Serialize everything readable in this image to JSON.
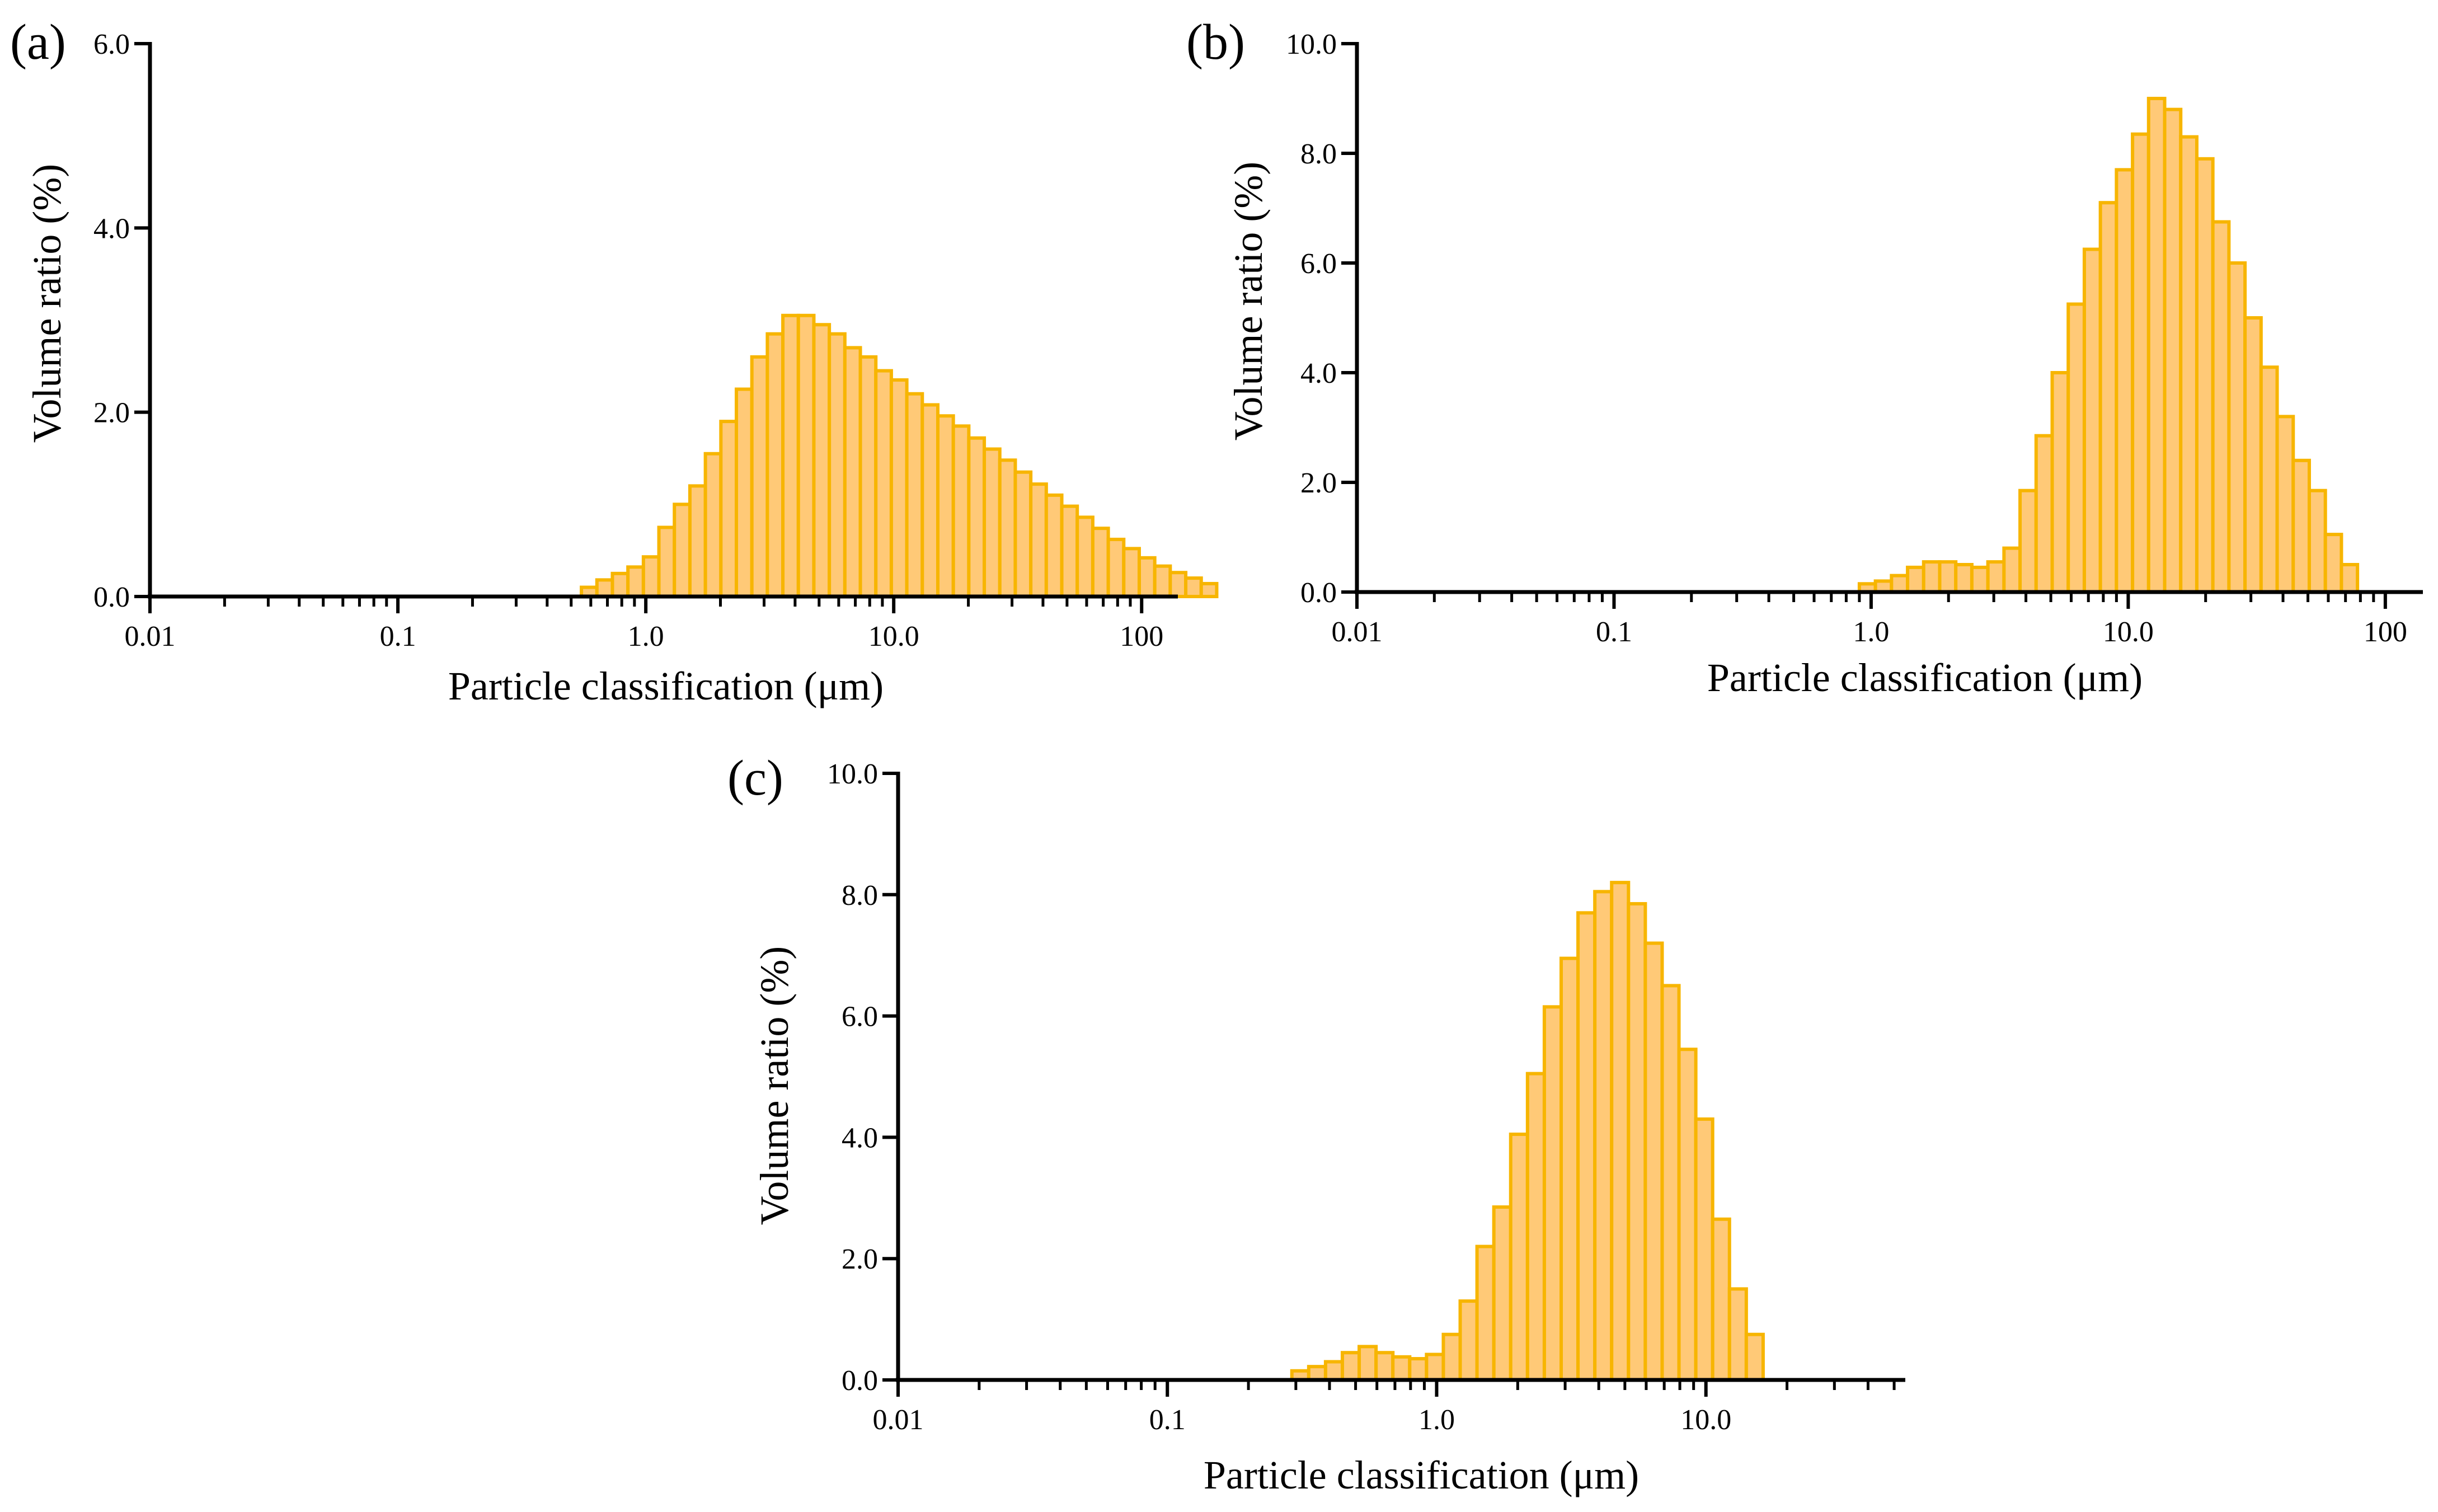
{
  "figure": {
    "colors": {
      "bar_fill": "#ffc977",
      "bar_stroke": "#f7b500",
      "axis": "#000000",
      "background": "#ffffff"
    }
  },
  "chart_data": [
    {
      "panel": "(a)",
      "type": "bar",
      "x_scale": "log",
      "xlabel": "Particle classification (μm)",
      "ylabel": "Volume ratio (%)",
      "xlim": [
        0.01,
        140
      ],
      "ylim": [
        0,
        6.0
      ],
      "xticks": [
        0.01,
        0.1,
        1.0,
        10.0,
        100
      ],
      "xtick_labels": [
        "0.01",
        "0.1",
        "1.0",
        "10.0",
        "100"
      ],
      "yticks": [
        0,
        2.0,
        4.0,
        6.0
      ],
      "ytick_labels": [
        "0.0",
        "2.0",
        "4.0",
        "6.0"
      ],
      "bin_start": 0.55,
      "bins_per_decade": 16,
      "values": [
        0.1,
        0.18,
        0.25,
        0.32,
        0.43,
        0.75,
        1.0,
        1.2,
        1.55,
        1.9,
        2.25,
        2.6,
        2.85,
        3.05,
        3.05,
        2.95,
        2.85,
        2.7,
        2.6,
        2.45,
        2.35,
        2.2,
        2.08,
        1.96,
        1.85,
        1.72,
        1.6,
        1.48,
        1.35,
        1.22,
        1.1,
        0.98,
        0.86,
        0.74,
        0.62,
        0.52,
        0.42,
        0.33,
        0.26,
        0.2,
        0.14
      ]
    },
    {
      "panel": "(b)",
      "type": "bar",
      "x_scale": "log",
      "xlabel": "Particle classification (μm)",
      "ylabel": "Volume ratio (%)",
      "xlim": [
        0.01,
        140
      ],
      "ylim": [
        0,
        10.0
      ],
      "xticks": [
        0.01,
        0.1,
        1.0,
        10.0,
        100
      ],
      "xtick_labels": [
        "0.01",
        "0.1",
        "1.0",
        "10.0",
        "100"
      ],
      "yticks": [
        0,
        2.0,
        4.0,
        6.0,
        8.0,
        10.0
      ],
      "ytick_labels": [
        "0.0",
        "2.0",
        "4.0",
        "6.0",
        "8.0",
        "10.0"
      ],
      "bin_start": 0.9,
      "bins_per_decade": 16,
      "values": [
        0.15,
        0.2,
        0.3,
        0.45,
        0.55,
        0.55,
        0.5,
        0.45,
        0.55,
        0.8,
        1.85,
        2.85,
        4.0,
        5.25,
        6.25,
        7.1,
        7.7,
        8.35,
        9.0,
        8.8,
        8.3,
        7.9,
        6.75,
        6.0,
        5.0,
        4.1,
        3.2,
        2.4,
        1.85,
        1.05,
        0.5
      ]
    },
    {
      "panel": "(c)",
      "type": "bar",
      "x_scale": "log",
      "xlabel": "Particle classification (μm)",
      "ylabel": "Volume ratio (%)",
      "xlim": [
        0.01,
        55
      ],
      "ylim": [
        0,
        10.0
      ],
      "xticks": [
        0.01,
        0.1,
        1.0,
        10.0
      ],
      "xtick_labels": [
        "0.01",
        "0.1",
        "1.0",
        "10.0"
      ],
      "yticks": [
        0,
        2.0,
        4.0,
        6.0,
        8.0,
        10.0
      ],
      "ytick_labels": [
        "0.0",
        "2.0",
        "4.0",
        "6.0",
        "8.0",
        "10.0"
      ],
      "bin_start": 0.29,
      "bins_per_decade": 16,
      "values": [
        0.15,
        0.22,
        0.3,
        0.45,
        0.55,
        0.45,
        0.38,
        0.35,
        0.42,
        0.75,
        1.3,
        2.2,
        2.85,
        4.05,
        5.05,
        6.15,
        6.95,
        7.7,
        8.05,
        8.2,
        7.85,
        7.2,
        6.5,
        5.45,
        4.3,
        2.65,
        1.5,
        0.75
      ]
    }
  ]
}
